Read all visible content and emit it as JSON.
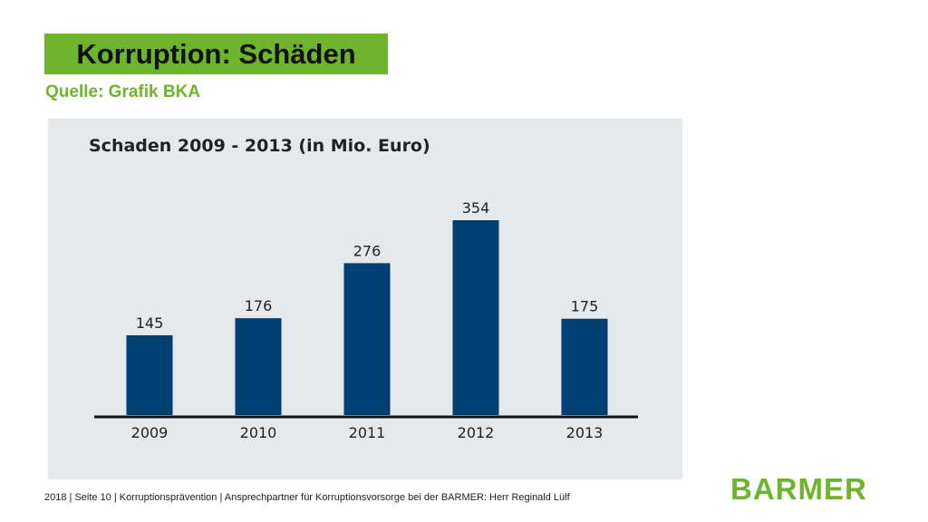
{
  "slide": {
    "title": "Korruption: Schäden",
    "source": "Quelle: Grafik BKA",
    "footer": "2018 | Seite 10 | Korruptionsprävention | Ansprechpartner für Korruptionsvorsorge bei der BARMER: Herr Reginald Lülf",
    "logo_text": "BARMER"
  },
  "colors": {
    "accent_green": "#6cb52d",
    "bar_blue": "#003f72",
    "panel_bg": "#e6e9ec"
  },
  "chart_data": {
    "type": "bar",
    "title": "Schaden 2009 - 2013 (in Mio. Euro)",
    "categories": [
      "2009",
      "2010",
      "2011",
      "2012",
      "2013"
    ],
    "values": [
      145,
      176,
      276,
      354,
      175
    ],
    "xlabel": "",
    "ylabel": "",
    "ylim": [
      0,
      354
    ],
    "grid": false,
    "legend": "none",
    "data_labels": true
  }
}
